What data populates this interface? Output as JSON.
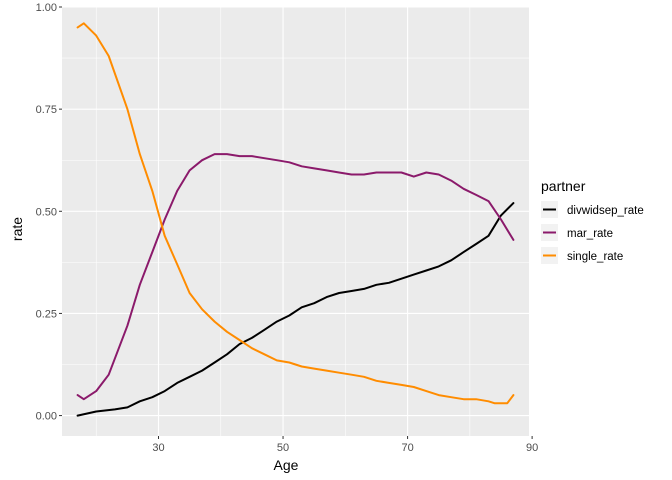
{
  "chart_data": {
    "type": "line",
    "xlabel": "Age",
    "ylabel": "rate",
    "xlim": [
      14.5,
      89.5
    ],
    "ylim": [
      -0.05,
      1.0
    ],
    "xticks": [
      30,
      50,
      70,
      90
    ],
    "yticks": [
      0.0,
      0.25,
      0.5,
      0.75,
      1.0
    ],
    "ytick_labels": [
      "0.00",
      "0.25",
      "0.50",
      "0.75",
      "1.00"
    ],
    "grid": true,
    "legend_title": "partner",
    "legend_position": "right",
    "series": [
      {
        "name": "divwidsep_rate",
        "color": "#000000",
        "x": [
          17,
          20,
          23,
          25,
          27,
          29,
          31,
          33,
          35,
          37,
          39,
          41,
          43,
          45,
          47,
          49,
          51,
          53,
          55,
          57,
          59,
          61,
          63,
          65,
          67,
          69,
          71,
          73,
          75,
          77,
          79,
          81,
          83,
          85,
          87
        ],
        "y": [
          0.0,
          0.01,
          0.015,
          0.02,
          0.035,
          0.045,
          0.06,
          0.08,
          0.095,
          0.11,
          0.13,
          0.15,
          0.175,
          0.19,
          0.21,
          0.23,
          0.245,
          0.265,
          0.275,
          0.29,
          0.3,
          0.305,
          0.31,
          0.32,
          0.325,
          0.335,
          0.345,
          0.355,
          0.365,
          0.38,
          0.4,
          0.42,
          0.44,
          0.49,
          0.52
        ]
      },
      {
        "name": "mar_rate",
        "color": "#8b1a6b",
        "x": [
          17,
          18,
          20,
          22,
          25,
          27,
          29,
          31,
          33,
          35,
          37,
          39,
          41,
          43,
          45,
          47,
          49,
          51,
          53,
          55,
          57,
          59,
          61,
          63,
          65,
          67,
          69,
          71,
          73,
          75,
          77,
          79,
          81,
          83,
          85,
          87
        ],
        "y": [
          0.05,
          0.04,
          0.06,
          0.1,
          0.22,
          0.32,
          0.4,
          0.48,
          0.55,
          0.6,
          0.625,
          0.64,
          0.64,
          0.635,
          0.635,
          0.63,
          0.625,
          0.62,
          0.61,
          0.605,
          0.6,
          0.595,
          0.59,
          0.59,
          0.595,
          0.595,
          0.595,
          0.585,
          0.595,
          0.59,
          0.575,
          0.555,
          0.54,
          0.525,
          0.48,
          0.43
        ]
      },
      {
        "name": "single_rate",
        "color": "#ff8c00",
        "x": [
          17,
          18,
          20,
          22,
          25,
          27,
          29,
          31,
          33,
          35,
          37,
          39,
          41,
          43,
          45,
          47,
          49,
          51,
          53,
          55,
          57,
          59,
          61,
          63,
          65,
          67,
          69,
          71,
          73,
          75,
          77,
          79,
          81,
          83,
          84,
          86,
          87
        ],
        "y": [
          0.95,
          0.96,
          0.93,
          0.88,
          0.75,
          0.64,
          0.55,
          0.44,
          0.37,
          0.3,
          0.26,
          0.23,
          0.205,
          0.185,
          0.165,
          0.15,
          0.135,
          0.13,
          0.12,
          0.115,
          0.11,
          0.105,
          0.1,
          0.095,
          0.085,
          0.08,
          0.075,
          0.07,
          0.06,
          0.05,
          0.045,
          0.04,
          0.04,
          0.035,
          0.03,
          0.03,
          0.05
        ]
      }
    ]
  }
}
